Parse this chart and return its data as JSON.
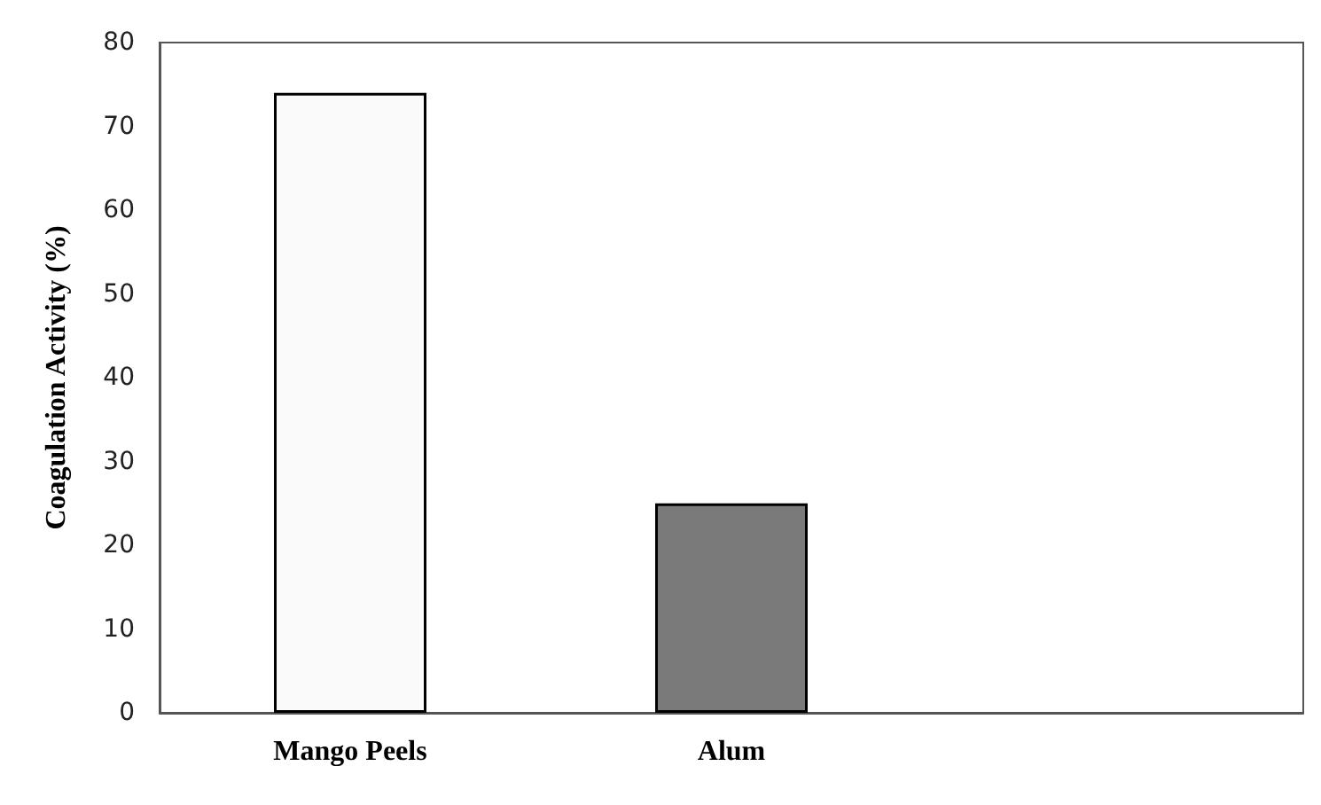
{
  "chart_data": {
    "type": "bar",
    "ylabel": "Coagulation Activity (%)",
    "categories": [
      "Mango Peels",
      "Alum",
      null
    ],
    "values": [
      74,
      25,
      null
    ],
    "colors": [
      "#fafafa",
      "#7a7a7a",
      null
    ],
    "ylim": [
      0,
      80
    ],
    "yticks": [
      0,
      10,
      20,
      30,
      40,
      50,
      60,
      70,
      80
    ],
    "grid": false
  }
}
